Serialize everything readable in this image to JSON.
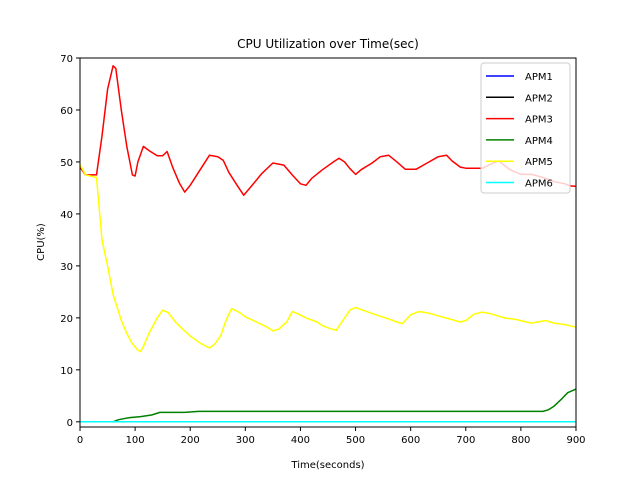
{
  "chart_data": {
    "type": "line",
    "title": "CPU Utilization over Time(sec)",
    "xlabel": "Time(seconds)",
    "ylabel": "CPU(%)",
    "xlim": [
      0,
      900
    ],
    "ylim": [
      -1,
      70
    ],
    "xticks": [
      0,
      100,
      200,
      300,
      400,
      500,
      600,
      700,
      800,
      900
    ],
    "yticks": [
      0,
      10,
      20,
      30,
      40,
      50,
      60,
      70
    ],
    "grid": false,
    "legend_position": "top-right",
    "series": [
      {
        "name": "APM1",
        "color": "#0000ff",
        "points": [
          [
            0,
            0
          ],
          [
            900,
            0
          ]
        ]
      },
      {
        "name": "APM2",
        "color": "#000000",
        "points": [
          [
            0,
            0
          ],
          [
            900,
            0
          ]
        ]
      },
      {
        "name": "APM3",
        "color": "#ff0000",
        "points": [
          [
            0,
            49
          ],
          [
            10,
            47.5
          ],
          [
            30,
            47.5
          ],
          [
            40,
            55
          ],
          [
            50,
            64
          ],
          [
            60,
            68.5
          ],
          [
            65,
            68
          ],
          [
            75,
            60
          ],
          [
            85,
            53
          ],
          [
            95,
            47.5
          ],
          [
            100,
            47.3
          ],
          [
            105,
            50
          ],
          [
            115,
            53
          ],
          [
            125,
            52.2
          ],
          [
            140,
            51.2
          ],
          [
            150,
            51.2
          ],
          [
            158,
            52
          ],
          [
            168,
            49
          ],
          [
            180,
            46
          ],
          [
            190,
            44.2
          ],
          [
            200,
            45.5
          ],
          [
            215,
            48
          ],
          [
            235,
            51.3
          ],
          [
            250,
            51
          ],
          [
            260,
            50.3
          ],
          [
            270,
            48
          ],
          [
            285,
            45.5
          ],
          [
            297,
            43.6
          ],
          [
            310,
            45.2
          ],
          [
            330,
            47.8
          ],
          [
            350,
            49.8
          ],
          [
            370,
            49.4
          ],
          [
            385,
            47.5
          ],
          [
            400,
            45.8
          ],
          [
            410,
            45.5
          ],
          [
            420,
            46.8
          ],
          [
            440,
            48.5
          ],
          [
            460,
            50
          ],
          [
            470,
            50.7
          ],
          [
            480,
            50
          ],
          [
            490,
            48.7
          ],
          [
            500,
            47.6
          ],
          [
            510,
            48.5
          ],
          [
            530,
            49.8
          ],
          [
            545,
            51
          ],
          [
            560,
            51.3
          ],
          [
            575,
            50
          ],
          [
            590,
            48.6
          ],
          [
            610,
            48.6
          ],
          [
            630,
            49.8
          ],
          [
            650,
            51
          ],
          [
            665,
            51.3
          ],
          [
            675,
            50.2
          ],
          [
            690,
            49
          ],
          [
            700,
            48.8
          ],
          [
            730,
            48.8
          ],
          [
            750,
            49.8
          ],
          [
            760,
            50.2
          ],
          [
            780,
            48.5
          ],
          [
            800,
            47.6
          ],
          [
            820,
            47.6
          ],
          [
            840,
            47
          ],
          [
            860,
            46.2
          ],
          [
            880,
            45.8
          ],
          [
            890,
            45.4
          ],
          [
            900,
            45.3
          ]
        ]
      },
      {
        "name": "APM4",
        "color": "#008000",
        "points": [
          [
            0,
            0
          ],
          [
            60,
            0
          ],
          [
            70,
            0.4
          ],
          [
            90,
            0.8
          ],
          [
            110,
            1.0
          ],
          [
            130,
            1.3
          ],
          [
            145,
            1.8
          ],
          [
            170,
            1.8
          ],
          [
            190,
            1.8
          ],
          [
            215,
            2.0
          ],
          [
            265,
            2.0
          ],
          [
            300,
            2.0
          ],
          [
            840,
            2.0
          ],
          [
            850,
            2.3
          ],
          [
            860,
            3
          ],
          [
            875,
            4.5
          ],
          [
            885,
            5.6
          ],
          [
            900,
            6.3
          ]
        ]
      },
      {
        "name": "APM5",
        "color": "#ffff00",
        "points": [
          [
            0,
            49.5
          ],
          [
            10,
            47.5
          ],
          [
            30,
            47
          ],
          [
            40,
            35
          ],
          [
            50,
            30
          ],
          [
            60,
            24.5
          ],
          [
            75,
            19.5
          ],
          [
            85,
            17
          ],
          [
            95,
            15
          ],
          [
            105,
            13.8
          ],
          [
            110,
            13.5
          ],
          [
            115,
            14.5
          ],
          [
            125,
            17
          ],
          [
            140,
            20
          ],
          [
            150,
            21.5
          ],
          [
            160,
            21
          ],
          [
            175,
            19
          ],
          [
            190,
            17.5
          ],
          [
            200,
            16.5
          ],
          [
            220,
            15
          ],
          [
            235,
            14.2
          ],
          [
            245,
            15
          ],
          [
            255,
            16.5
          ],
          [
            265,
            19.5
          ],
          [
            275,
            21.8
          ],
          [
            290,
            21
          ],
          [
            300,
            20.2
          ],
          [
            320,
            19.2
          ],
          [
            340,
            18.2
          ],
          [
            350,
            17.5
          ],
          [
            360,
            17.8
          ],
          [
            375,
            19.2
          ],
          [
            385,
            21.2
          ],
          [
            395,
            20.8
          ],
          [
            410,
            20
          ],
          [
            430,
            19.2
          ],
          [
            440,
            18.5
          ],
          [
            455,
            17.9
          ],
          [
            465,
            17.6
          ],
          [
            475,
            19.2
          ],
          [
            490,
            21.5
          ],
          [
            500,
            22
          ],
          [
            520,
            21.2
          ],
          [
            545,
            20.3
          ],
          [
            560,
            19.8
          ],
          [
            575,
            19.2
          ],
          [
            585,
            18.9
          ],
          [
            600,
            20.6
          ],
          [
            615,
            21.2
          ],
          [
            630,
            21
          ],
          [
            650,
            20.4
          ],
          [
            670,
            19.8
          ],
          [
            690,
            19.2
          ],
          [
            700,
            19.5
          ],
          [
            715,
            20.7
          ],
          [
            730,
            21.1
          ],
          [
            745,
            20.8
          ],
          [
            770,
            20
          ],
          [
            790,
            19.7
          ],
          [
            810,
            19.2
          ],
          [
            820,
            19
          ],
          [
            845,
            19.5
          ],
          [
            860,
            19
          ],
          [
            880,
            18.7
          ],
          [
            900,
            18.2
          ]
        ]
      },
      {
        "name": "APM6",
        "color": "#00ffff",
        "points": [
          [
            0,
            0
          ],
          [
            900,
            0
          ]
        ]
      }
    ]
  }
}
